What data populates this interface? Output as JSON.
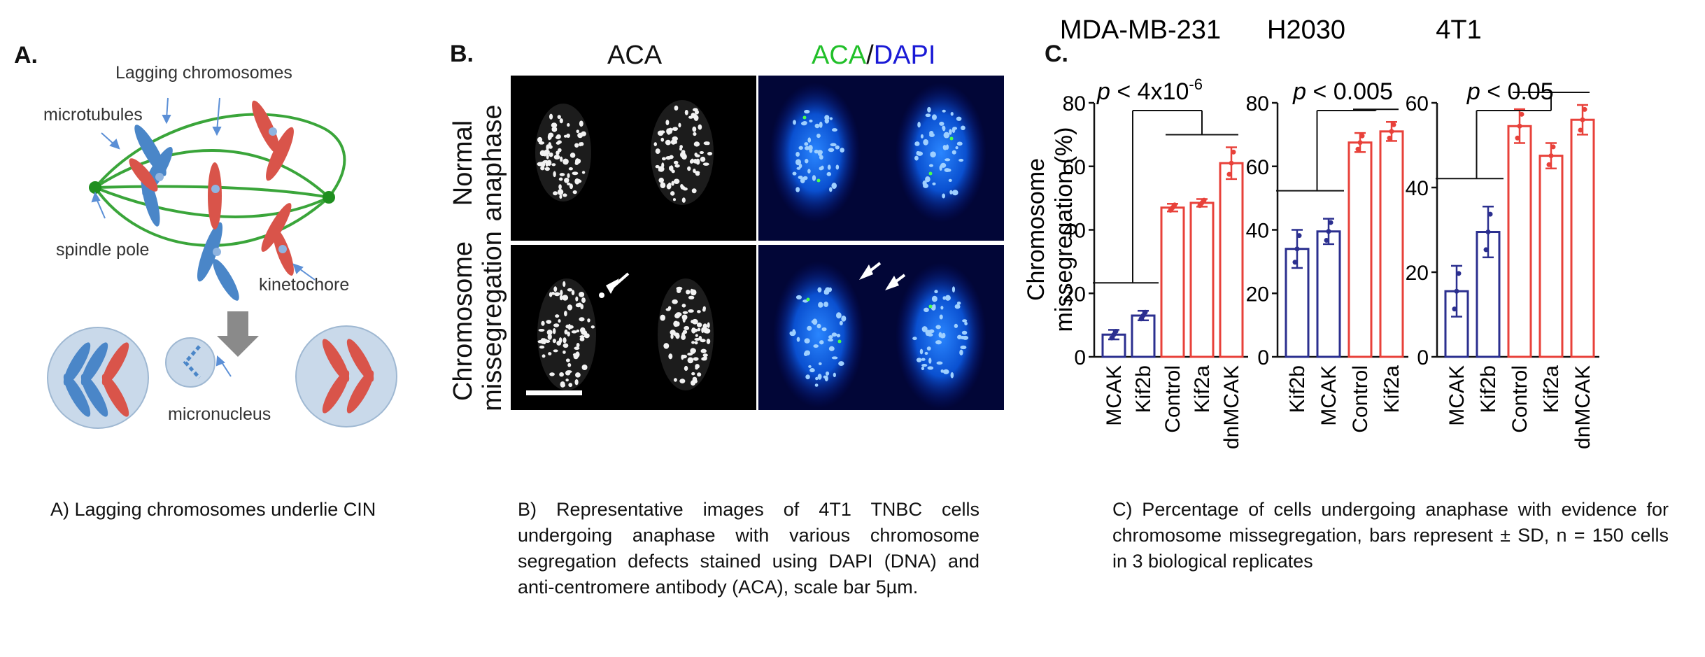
{
  "panel_a": {
    "letter": "A.",
    "labels": {
      "lagging": "Lagging chromosomes",
      "microtubules": "microtubules",
      "spindle_pole": "spindle pole",
      "kinetochore": "kinetochore",
      "micronucleus": "micronucleus"
    },
    "caption": "A) Lagging chromosomes underlie CIN"
  },
  "panel_b": {
    "letter": "B.",
    "col1": "ACA",
    "col2_green": "ACA",
    "col2_sep": "/",
    "col2_blue": "DAPI",
    "row1": [
      "Normal",
      "anaphase"
    ],
    "row2": [
      "Chromosome",
      "missegregation"
    ],
    "caption": "B) Representative images of 4T1 TNBC cells undergoing anaphase with various chromosome segregation defects stained using DAPI (DNA) and anti-centromere antibody (ACA), scale bar 5µm."
  },
  "panel_c": {
    "letter": "C.",
    "caption": "C) Percentage of cells undergoing anaphase with evidence for chromosome missegregation, bars represent ± SD, n = 150 cells in 3 biological replicates"
  },
  "colors": {
    "blue_bar": "#2b2f8f",
    "red_bar": "#e8413a",
    "aca_green": "#22c02a",
    "dapi_blue": "#1a1ad6"
  },
  "chart_data": [
    {
      "type": "bar",
      "title": "MDA-MB-231",
      "ylabel": "Chromosome missegregation (%)",
      "ylim": [
        0,
        80
      ],
      "yticks": [
        0,
        20,
        40,
        60,
        80
      ],
      "categories": [
        "MCAK",
        "Kif2b",
        "Control",
        "Kif2a",
        "dnMCAK"
      ],
      "values": [
        7,
        13,
        47,
        48.5,
        61
      ],
      "errors": [
        1.5,
        1.5,
        1.2,
        1.2,
        5
      ],
      "groups": [
        "blue",
        "blue",
        "red",
        "red",
        "red"
      ],
      "annotation": {
        "p": "p",
        "text": " < 4x10",
        "sup": "-6"
      }
    },
    {
      "type": "bar",
      "title": "H2030",
      "ylim": [
        0,
        80
      ],
      "yticks": [
        0,
        20,
        40,
        60,
        80
      ],
      "categories": [
        "Kif2b",
        "MCAK",
        "Control",
        "Kif2a"
      ],
      "values": [
        34,
        39.5,
        67.5,
        71
      ],
      "errors": [
        6,
        4,
        3,
        3
      ],
      "groups": [
        "blue",
        "blue",
        "red",
        "red"
      ],
      "annotation": {
        "p": "p",
        "text": " < 0.005",
        "sup": ""
      }
    },
    {
      "type": "bar",
      "title": "4T1",
      "ylim": [
        0,
        60
      ],
      "yticks": [
        0,
        20,
        40,
        60
      ],
      "categories": [
        "MCAK",
        "Kif2b",
        "Control",
        "Kif2a",
        "dnMCAK"
      ],
      "values": [
        15.5,
        29.5,
        54.5,
        47.5,
        56
      ],
      "errors": [
        6,
        6,
        4,
        3,
        3.5
      ],
      "groups": [
        "blue",
        "blue",
        "red",
        "red",
        "red"
      ],
      "annotation": {
        "p": "p",
        "text": " < 0.05",
        "sup": ""
      }
    }
  ]
}
